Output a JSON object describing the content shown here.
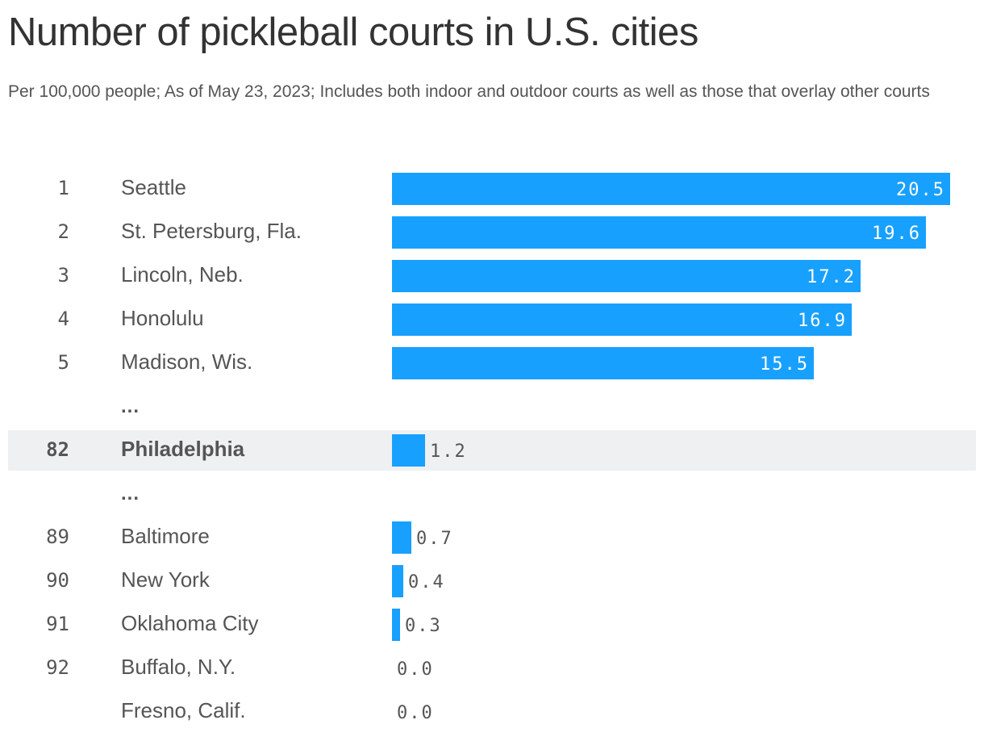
{
  "title": "Number of pickleball courts in U.S. cities",
  "subtitle": "Per 100,000 people; As of May 23, 2023; Includes both indoor and outdoor courts as well as those that overlay other courts",
  "ellipsis": "...",
  "colors": {
    "bar": "#18a0ff",
    "highlight_row": "#eff0f2",
    "text": "#555555",
    "title": "#333333"
  },
  "chart_data": {
    "type": "bar",
    "orientation": "horizontal",
    "title": "Number of pickleball courts in U.S. cities",
    "subtitle": "Per 100,000 people; As of May 23, 2023; Includes both indoor and outdoor courts as well as those that overlay other courts",
    "xlim": [
      0,
      20.5
    ],
    "rows": [
      {
        "rank": "1",
        "city": "Seattle",
        "value": 20.5,
        "label": "20.5",
        "highlight": false
      },
      {
        "rank": "2",
        "city": "St. Petersburg, Fla.",
        "value": 19.6,
        "label": "19.6",
        "highlight": false
      },
      {
        "rank": "3",
        "city": "Lincoln, Neb.",
        "value": 17.2,
        "label": "17.2",
        "highlight": false
      },
      {
        "rank": "4",
        "city": "Honolulu",
        "value": 16.9,
        "label": "16.9",
        "highlight": false
      },
      {
        "rank": "5",
        "city": "Madison, Wis.",
        "value": 15.5,
        "label": "15.5",
        "highlight": false
      },
      {
        "gap": true
      },
      {
        "rank": "82",
        "city": "Philadelphia",
        "value": 1.2,
        "label": "1.2",
        "highlight": true
      },
      {
        "gap": true
      },
      {
        "rank": "89",
        "city": "Baltimore",
        "value": 0.7,
        "label": "0.7",
        "highlight": false
      },
      {
        "rank": "90",
        "city": "New York",
        "value": 0.4,
        "label": "0.4",
        "highlight": false
      },
      {
        "rank": "91",
        "city": "Oklahoma City",
        "value": 0.3,
        "label": "0.3",
        "highlight": false
      },
      {
        "rank": "92",
        "city": "Buffalo, N.Y.",
        "value": 0.0,
        "label": "0.0",
        "highlight": false
      },
      {
        "rank": "",
        "city": "Fresno, Calif.",
        "value": 0.0,
        "label": "0.0",
        "highlight": false
      }
    ]
  }
}
